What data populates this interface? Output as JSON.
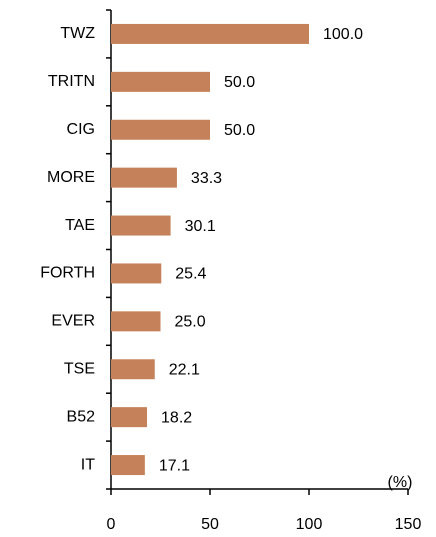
{
  "chart_data": {
    "type": "barh",
    "categories": [
      "TWZ",
      "TRITN",
      "CIG",
      "MORE",
      "TAE",
      "FORTH",
      "EVER",
      "TSE",
      "B52",
      "IT"
    ],
    "values": [
      100,
      50,
      50,
      33.3,
      30.1,
      25.4,
      25,
      22.1,
      18.2,
      17.1
    ],
    "value_labels": [
      "100.0",
      "50.0",
      "50.0",
      "33.3",
      "30.1",
      "25.4",
      "25.0",
      "22.1",
      "18.2",
      "17.1"
    ],
    "color": "#c5825a",
    "xlim": [
      0,
      150
    ],
    "xticks": [
      0,
      50,
      100,
      150
    ],
    "x_unit": "(%)"
  }
}
